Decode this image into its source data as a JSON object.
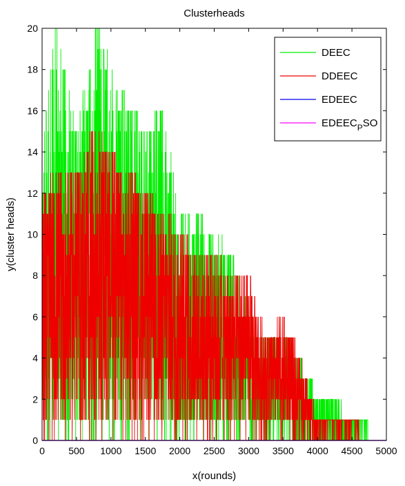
{
  "chart_data": {
    "type": "line",
    "title": "Clusterheads",
    "xlabel": "x(rounds)",
    "ylabel": "y(cluster heads)",
    "xlim": [
      0,
      5000
    ],
    "ylim": [
      0,
      20
    ],
    "xticks": [
      0,
      500,
      1000,
      1500,
      2000,
      2500,
      3000,
      3500,
      4000,
      4500,
      5000
    ],
    "yticks": [
      0,
      2,
      4,
      6,
      8,
      10,
      12,
      14,
      16,
      18,
      20
    ],
    "grid": false,
    "legend_position": "top-right",
    "series": [
      {
        "name": "DEEC",
        "color": "#00ee00",
        "envelope": [
          {
            "x": 0,
            "max": 14
          },
          {
            "x": 200,
            "max": 20
          },
          {
            "x": 500,
            "max": 15
          },
          {
            "x": 800,
            "max": 20
          },
          {
            "x": 1100,
            "max": 17
          },
          {
            "x": 1500,
            "max": 15
          },
          {
            "x": 1750,
            "max": 16
          },
          {
            "x": 2000,
            "max": 11
          },
          {
            "x": 2250,
            "max": 11
          },
          {
            "x": 2500,
            "max": 10
          },
          {
            "x": 2750,
            "max": 9
          },
          {
            "x": 3000,
            "max": 6
          },
          {
            "x": 3250,
            "max": 5
          },
          {
            "x": 3500,
            "max": 5
          },
          {
            "x": 3750,
            "max": 4
          },
          {
            "x": 4000,
            "max": 2
          },
          {
            "x": 4200,
            "max": 2
          },
          {
            "x": 4500,
            "max": 1
          },
          {
            "x": 4720,
            "max": 1
          },
          {
            "x": 4730,
            "max": 0
          }
        ]
      },
      {
        "name": "DDEEC",
        "color": "#ee0000",
        "envelope": [
          {
            "x": 0,
            "max": 12
          },
          {
            "x": 250,
            "max": 13
          },
          {
            "x": 500,
            "max": 13
          },
          {
            "x": 750,
            "max": 15
          },
          {
            "x": 1000,
            "max": 14
          },
          {
            "x": 1250,
            "max": 13
          },
          {
            "x": 1500,
            "max": 12
          },
          {
            "x": 1750,
            "max": 11
          },
          {
            "x": 2000,
            "max": 10
          },
          {
            "x": 2250,
            "max": 9
          },
          {
            "x": 2500,
            "max": 9
          },
          {
            "x": 2750,
            "max": 8
          },
          {
            "x": 3000,
            "max": 8
          },
          {
            "x": 3250,
            "max": 5
          },
          {
            "x": 3500,
            "max": 6
          },
          {
            "x": 3750,
            "max": 4
          },
          {
            "x": 4000,
            "max": 1
          },
          {
            "x": 4560,
            "max": 1
          },
          {
            "x": 4600,
            "max": 0
          }
        ]
      },
      {
        "name": "EDEEC",
        "color": "#0000ee",
        "points": [
          [
            0,
            0
          ],
          [
            5000,
            0
          ]
        ]
      },
      {
        "name": "EDEEC_PSO",
        "label_main": "EDEEC",
        "label_sub": "P",
        "label_tail": "SO",
        "color": "#ff00ff",
        "points": [
          [
            0,
            0
          ],
          [
            5000,
            0
          ]
        ]
      }
    ]
  }
}
